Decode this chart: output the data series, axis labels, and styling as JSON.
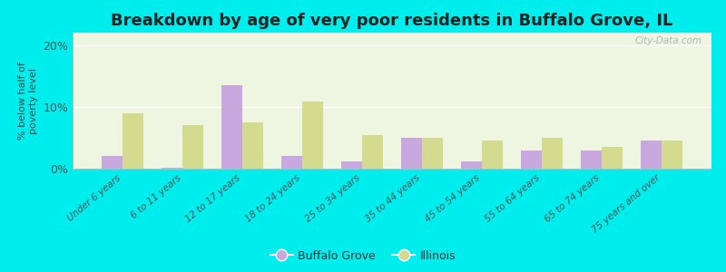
{
  "title": "Breakdown by age of very poor residents in Buffalo Grove, IL",
  "categories": [
    "Under 6 years",
    "6 to 11 years",
    "12 to 17 years",
    "18 to 24 years",
    "25 to 34 years",
    "35 to 44 years",
    "45 to 54 years",
    "55 to 64 years",
    "65 to 74 years",
    "75 years and over"
  ],
  "buffalo_grove": [
    2.0,
    0.2,
    13.5,
    2.0,
    1.2,
    5.0,
    1.2,
    3.0,
    3.0,
    4.5
  ],
  "illinois": [
    9.0,
    7.0,
    7.5,
    10.8,
    5.5,
    5.0,
    4.5,
    5.0,
    3.5,
    4.5
  ],
  "buffalo_grove_color": "#c9a8e0",
  "illinois_color": "#d4db8e",
  "background_color": "#00eded",
  "plot_bg": "#eef5e0",
  "ylabel": "% below half of\npoverty level",
  "ylim": [
    0,
    22
  ],
  "yticks": [
    0,
    10,
    20
  ],
  "ytick_labels": [
    "0%",
    "10%",
    "20%"
  ],
  "bar_width": 0.35,
  "title_fontsize": 13,
  "watermark": "City-Data.com"
}
